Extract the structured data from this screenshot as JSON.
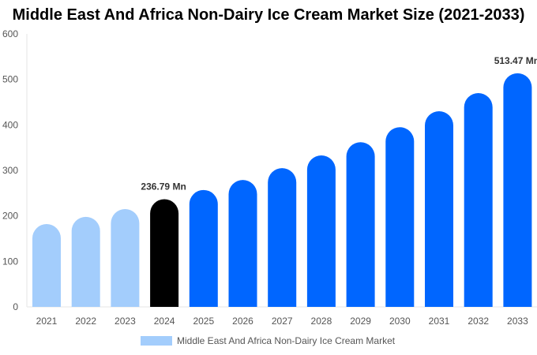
{
  "chart_data": {
    "type": "bar",
    "title": "Middle East And Africa Non-Dairy Ice Cream Market Size (2021-2033)",
    "categories": [
      "2021",
      "2022",
      "2023",
      "2024",
      "2025",
      "2026",
      "2027",
      "2028",
      "2029",
      "2030",
      "2031",
      "2032",
      "2033"
    ],
    "series": [
      {
        "name": "Middle East And Africa Non-Dairy Ice Cream Market",
        "values": [
          182,
          198,
          215,
          236.79,
          257,
          279,
          305,
          333,
          362,
          395,
          430,
          470,
          513.47
        ]
      }
    ],
    "data_labels": {
      "3": "236.79 Mn",
      "12": "513.47 Mn"
    },
    "ylim": [
      0,
      600
    ],
    "yticks": [
      0,
      100,
      200,
      300,
      400,
      500,
      600
    ],
    "grid": false,
    "legend": "bottom",
    "colors": {
      "historic": "#a3cdfc",
      "current": "#000000",
      "forecast": "#0066ff"
    }
  }
}
